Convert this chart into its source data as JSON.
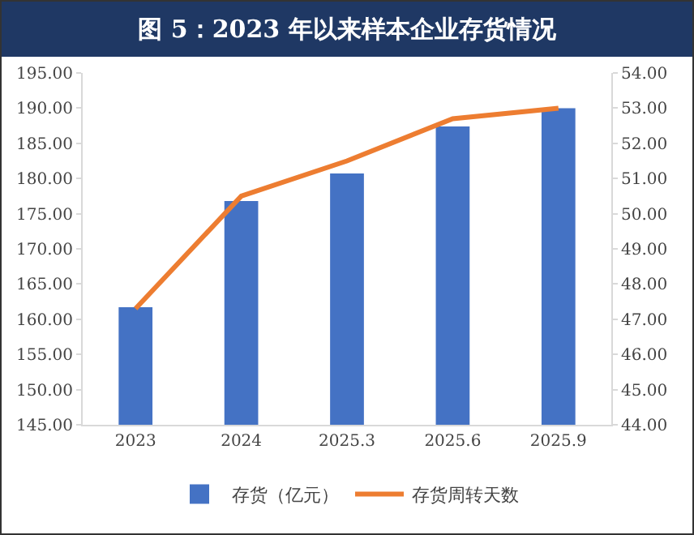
{
  "chart_data": {
    "type": "bar",
    "title": "图 5：2023 年以来样本企业存货情况",
    "categories": [
      "2023",
      "2024",
      "2025.3",
      "2025.6",
      "2025.9"
    ],
    "series": [
      {
        "name": "存货（亿元）",
        "color": "#4472c4",
        "values": [
          161.7,
          176.8,
          180.7,
          187.4,
          190.0
        ]
      },
      {
        "name": "存货周转天数",
        "type": "line",
        "axis": "y2",
        "color": "#ed7d31",
        "values": [
          47.3,
          50.5,
          51.5,
          52.7,
          53.0
        ]
      }
    ],
    "ylim": [
      145,
      195
    ],
    "yticks": [
      {
        "value": 145,
        "label": "145.00"
      },
      {
        "value": 150,
        "label": "150.00"
      },
      {
        "value": 155,
        "label": "155.00"
      },
      {
        "value": 160,
        "label": "160.00"
      },
      {
        "value": 165,
        "label": "165.00"
      },
      {
        "value": 170,
        "label": "170.00"
      },
      {
        "value": 175,
        "label": "175.00"
      },
      {
        "value": 180,
        "label": "180.00"
      },
      {
        "value": 185,
        "label": "185.00"
      },
      {
        "value": 190,
        "label": "190.00"
      },
      {
        "value": 195,
        "label": "195.00"
      }
    ],
    "y2lim": [
      44,
      54
    ],
    "y2ticks": [
      {
        "value": 44,
        "label": "44.00"
      },
      {
        "value": 45,
        "label": "45.00"
      },
      {
        "value": 46,
        "label": "46.00"
      },
      {
        "value": 47,
        "label": "47.00"
      },
      {
        "value": 48,
        "label": "48.00"
      },
      {
        "value": 49,
        "label": "49.00"
      },
      {
        "value": 50,
        "label": "50.00"
      },
      {
        "value": 51,
        "label": "51.00"
      },
      {
        "value": 52,
        "label": "52.00"
      },
      {
        "value": 53,
        "label": "53.00"
      },
      {
        "value": 54,
        "label": "54.00"
      }
    ],
    "legend": "bottom",
    "marker": "none"
  }
}
